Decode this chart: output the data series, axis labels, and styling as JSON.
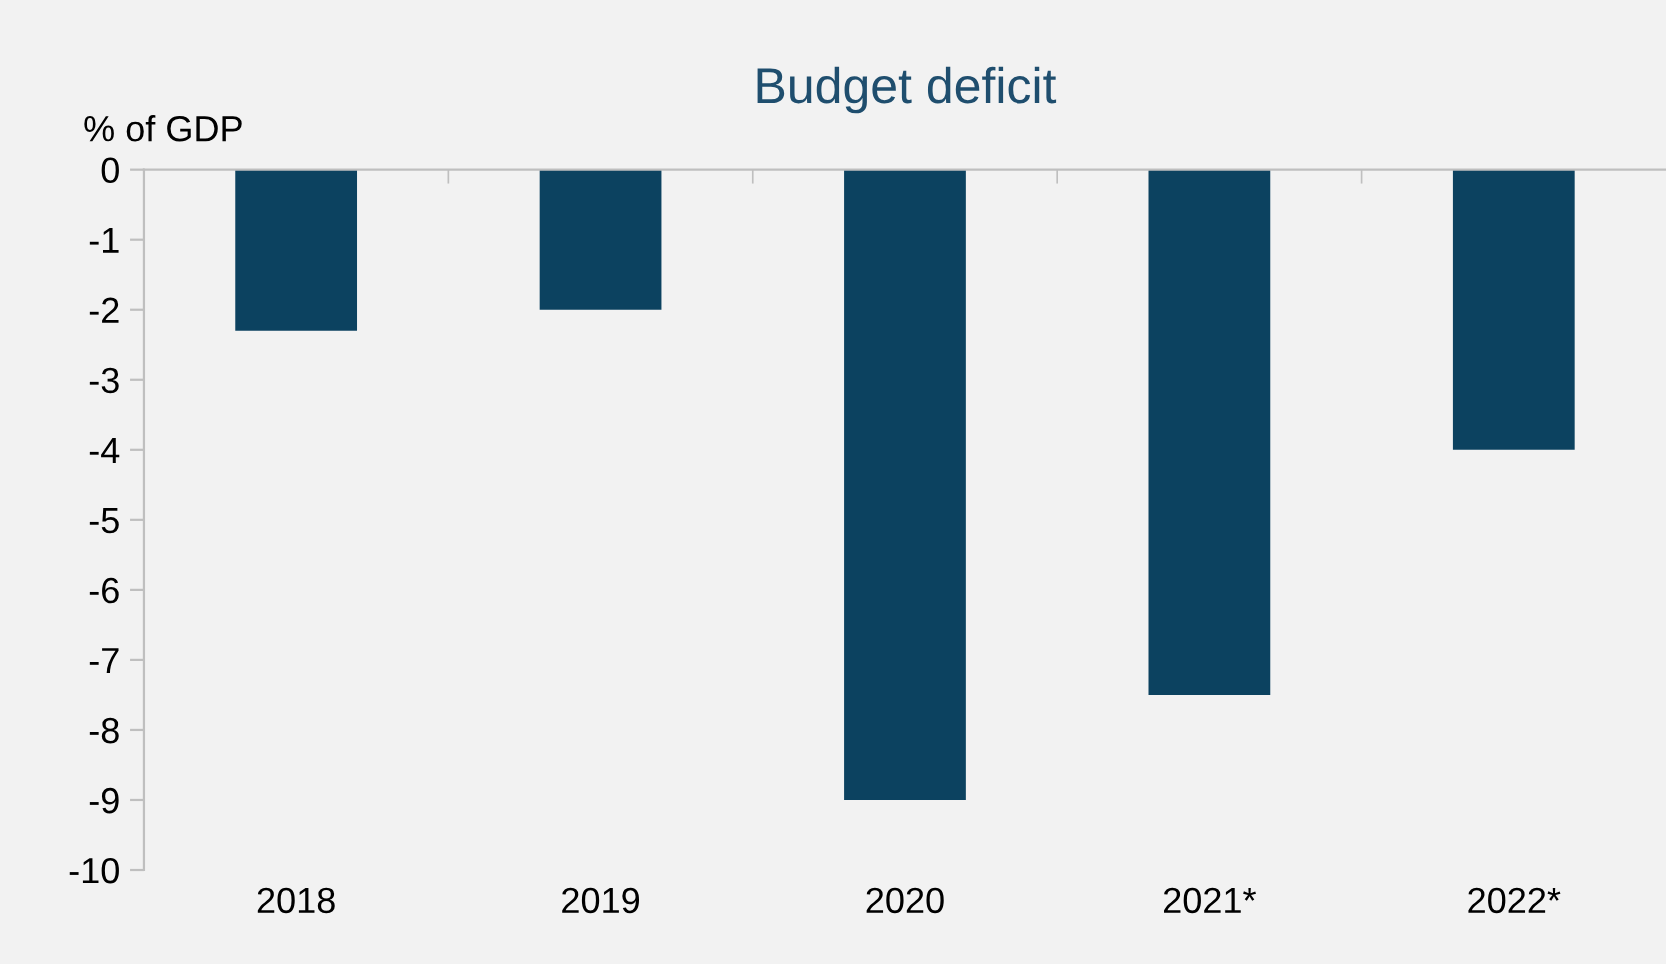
{
  "chart_data": {
    "type": "bar",
    "title": "Budget deficit",
    "ylabel": "% of GDP",
    "categories": [
      "2018",
      "2019",
      "2020",
      "2021*",
      "2022*"
    ],
    "values": [
      -2.3,
      -2.0,
      -9.0,
      -7.5,
      -4.0
    ],
    "color": "#0c4260",
    "ylim": [
      -10,
      0
    ],
    "yticks": [
      0,
      -1,
      -2,
      -3,
      -4,
      -5,
      -6,
      -7,
      -8,
      -9,
      -10
    ],
    "grid": false,
    "legend": false
  }
}
